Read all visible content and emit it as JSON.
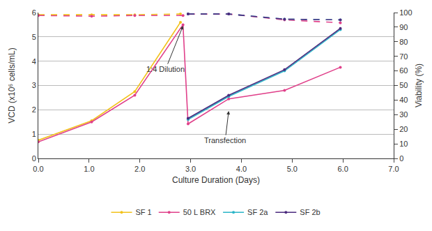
{
  "chart_data": {
    "type": "line",
    "x_label": "Culture Duration (Days)",
    "y_label": "VCD (x10⁶ cells/mL)",
    "y2_label": "Viability (%)",
    "xlim": [
      0,
      7
    ],
    "xticks": [
      {
        "value": 0,
        "label": "0.0"
      },
      {
        "value": 1,
        "label": "1.0"
      },
      {
        "value": 2,
        "label": "2.0"
      },
      {
        "value": 3,
        "label": "3.0"
      },
      {
        "value": 4,
        "label": "4.0"
      },
      {
        "value": 5,
        "label": "5.0"
      },
      {
        "value": 6,
        "label": "6.0"
      },
      {
        "value": 7,
        "label": "7.0"
      }
    ],
    "ylim": [
      0,
      6
    ],
    "yticks": [
      0,
      1,
      2,
      3,
      4,
      5,
      6
    ],
    "y2lim": [
      0,
      100
    ],
    "y2ticks": [
      0,
      10,
      20,
      30,
      40,
      50,
      60,
      70,
      80,
      90,
      100
    ],
    "grid": true,
    "legend": "bottom",
    "marker": "circle",
    "series": [
      {
        "name": "SF 1",
        "color": "#f2c21b",
        "line_style": "solid",
        "x": [
          0,
          1.05,
          1.9,
          2.8
        ],
        "values": [
          0.75,
          1.55,
          2.75,
          5.6
        ]
      },
      {
        "name": "50 L BRX",
        "color": "#e0408a",
        "line_style": "solid",
        "x": [
          0,
          1.05,
          1.9,
          2.85,
          2.95,
          3.75,
          4.85,
          5.95
        ],
        "values": [
          0.68,
          1.5,
          2.6,
          5.5,
          1.42,
          2.45,
          2.8,
          3.75
        ]
      },
      {
        "name": "SF 2a",
        "color": "#2bb5c8",
        "line_style": "solid",
        "x": [
          2.95,
          3.75,
          4.85,
          5.95
        ],
        "values": [
          1.6,
          2.55,
          3.6,
          5.3
        ]
      },
      {
        "name": "SF 2b",
        "color": "#4b2a7e",
        "line_style": "solid",
        "x": [
          2.95,
          3.75,
          4.85,
          5.95
        ],
        "values": [
          1.65,
          2.6,
          3.65,
          5.35
        ]
      },
      {
        "name": "SF 1",
        "color": "#f2c21b",
        "line_style": "dashed",
        "axis": "y2",
        "x": [
          0,
          1.05,
          1.9,
          2.8
        ],
        "values": [
          98.5,
          98.5,
          98.5,
          99
        ]
      },
      {
        "name": "50 L BRX",
        "color": "#e0408a",
        "line_style": "dashed",
        "axis": "y2",
        "x": [
          0,
          1.05,
          1.9,
          2.85,
          2.95,
          3.75,
          4.85,
          5.95
        ],
        "values": [
          98,
          97.5,
          98,
          98,
          99,
          99,
          95,
          93
        ]
      },
      {
        "name": "SF 2a",
        "color": "#2bb5c8",
        "line_style": "dashed",
        "axis": "y2",
        "x": [
          2.95,
          3.75,
          4.85,
          5.95
        ],
        "values": [
          99,
          99,
          95.5,
          95
        ]
      },
      {
        "name": "SF 2b",
        "color": "#4b2a7e",
        "line_style": "dashed",
        "axis": "y2",
        "x": [
          2.95,
          3.75,
          4.85,
          5.95
        ],
        "values": [
          99,
          99,
          95.5,
          95
        ]
      }
    ],
    "annotations": [
      {
        "text": "1:4 Dilution",
        "x": 2.85,
        "y": 5.45
      },
      {
        "text": "Transfection",
        "x": 3.75,
        "y": 1.95
      }
    ]
  }
}
